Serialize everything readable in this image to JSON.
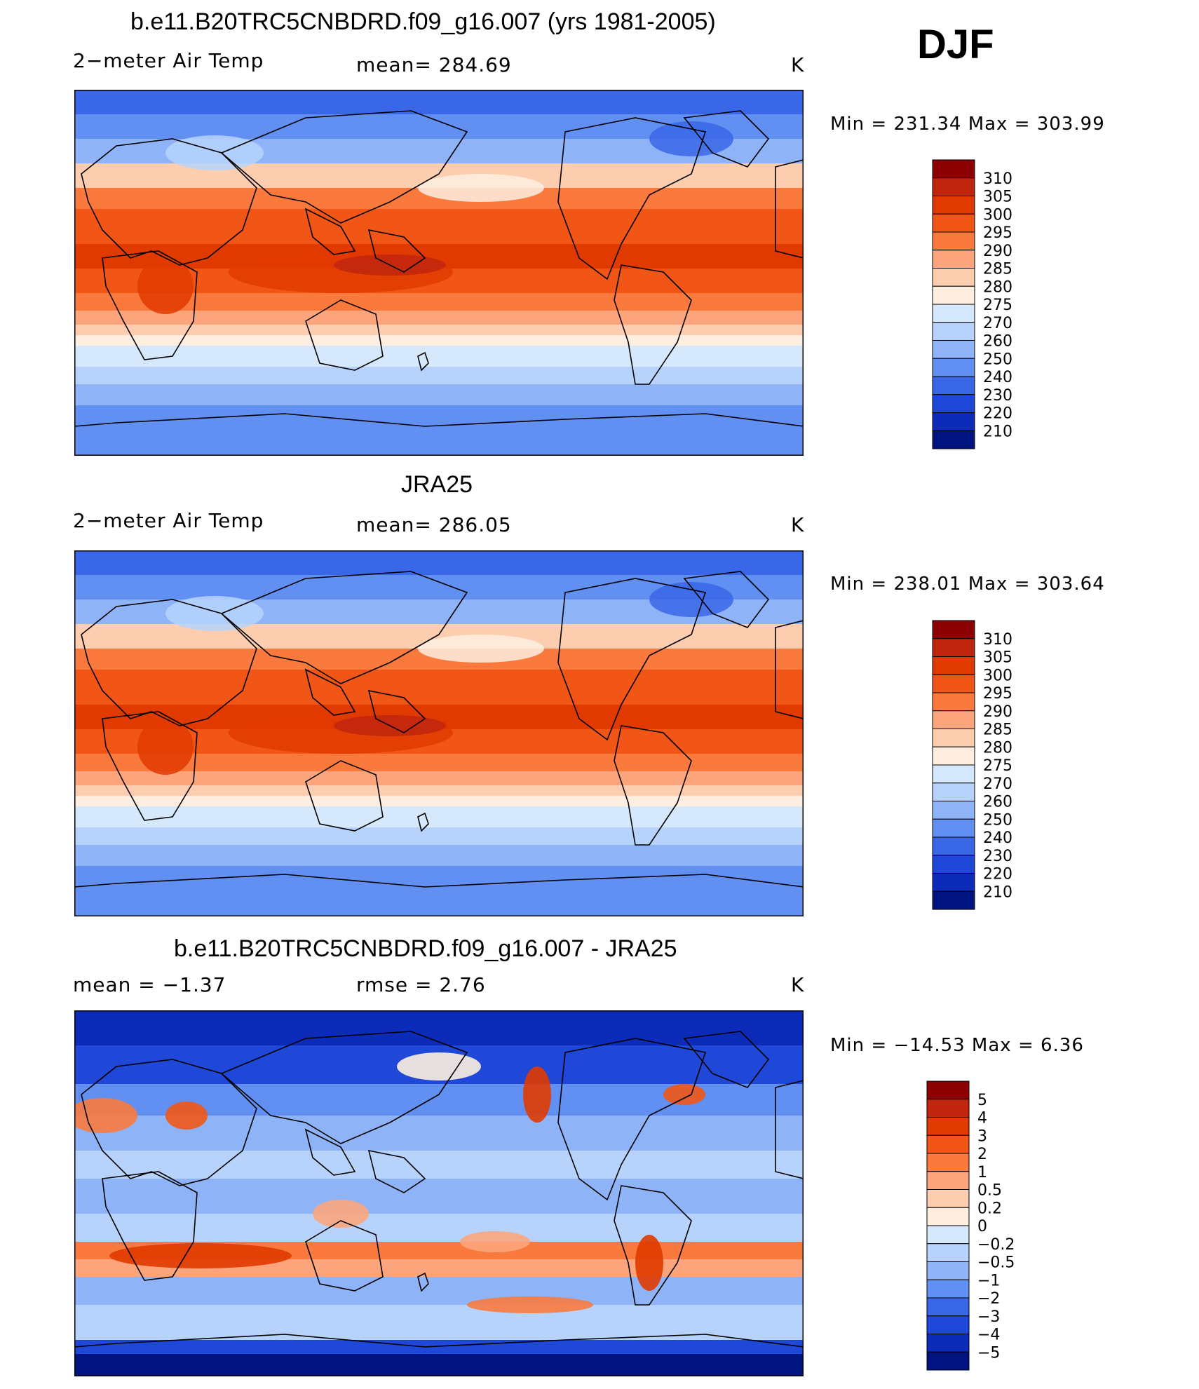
{
  "season": "DJF",
  "panels": [
    {
      "title": "b.e11.B20TRC5CNBDRD.f09_g16.007 (yrs 1981-2005)",
      "left_label": "2−meter Air Temp",
      "center_label": "mean=  284.69",
      "unit": "K",
      "minmax": "Min  =  231.34  Max  =  303.99",
      "scheme": "abs"
    },
    {
      "title": "JRA25",
      "left_label": "2−meter Air Temp",
      "center_label": "mean=  286.05",
      "unit": "K",
      "minmax": "Min  =  238.01  Max  =  303.64",
      "scheme": "abs"
    },
    {
      "title": "b.e11.B20TRC5CNBDRD.f09_g16.007 - JRA25",
      "left_label": "mean  =    −1.37",
      "center_label": "rmse  =     2.76",
      "unit": "K",
      "minmax": "Min  =  −14.53  Max  =     6.36",
      "scheme": "diff"
    }
  ],
  "chart_data": [
    {
      "type": "heatmap",
      "title": "b.e11.B20TRC5CNBDRD.f09_g16.007 (yrs 1981-2005)",
      "variable": "2−meter Air Temp",
      "units": "K",
      "mean": 284.69,
      "min": 231.34,
      "max": 303.99,
      "colorbar_levels": [
        "310",
        "305",
        "300",
        "295",
        "290",
        "285",
        "280",
        "275",
        "270",
        "260",
        "250",
        "240",
        "230",
        "220",
        "210"
      ],
      "colorbar_colors": [
        "#8b0000",
        "#c0260e",
        "#e03a00",
        "#f25616",
        "#fa7a3e",
        "#fca57c",
        "#fdcdb0",
        "#fdeee0",
        "#d6e8fb",
        "#b7d3fb",
        "#8fb3f7",
        "#6190f2",
        "#3a67e8",
        "#1f47d8",
        "#0c2bb8",
        "#00137e"
      ]
    },
    {
      "type": "heatmap",
      "title": "JRA25",
      "variable": "2−meter Air Temp",
      "units": "K",
      "mean": 286.05,
      "min": 238.01,
      "max": 303.64,
      "colorbar_levels": [
        "310",
        "305",
        "300",
        "295",
        "290",
        "285",
        "280",
        "275",
        "270",
        "260",
        "250",
        "240",
        "230",
        "220",
        "210"
      ],
      "colorbar_colors": [
        "#8b0000",
        "#c0260e",
        "#e03a00",
        "#f25616",
        "#fa7a3e",
        "#fca57c",
        "#fdcdb0",
        "#fdeee0",
        "#d6e8fb",
        "#b7d3fb",
        "#8fb3f7",
        "#6190f2",
        "#3a67e8",
        "#1f47d8",
        "#0c2bb8",
        "#00137e"
      ]
    },
    {
      "type": "heatmap",
      "title": "b.e11.B20TRC5CNBDRD.f09_g16.007 - JRA25",
      "units": "K",
      "mean": -1.37,
      "rmse": 2.76,
      "min": -14.53,
      "max": 6.36,
      "colorbar_levels": [
        "5",
        "4",
        "3",
        "2",
        "1",
        "0.5",
        "0.2",
        "0",
        "−0.2",
        "−0.5",
        "−1",
        "−2",
        "−3",
        "−4",
        "−5"
      ],
      "colorbar_colors": [
        "#8b0000",
        "#c0260e",
        "#e03a00",
        "#f25616",
        "#fa7a3e",
        "#fca57c",
        "#fdcdb0",
        "#fdeee0",
        "#d6e8fb",
        "#b7d3fb",
        "#8fb3f7",
        "#6190f2",
        "#3a67e8",
        "#1f47d8",
        "#0c2bb8",
        "#00137e"
      ]
    }
  ]
}
